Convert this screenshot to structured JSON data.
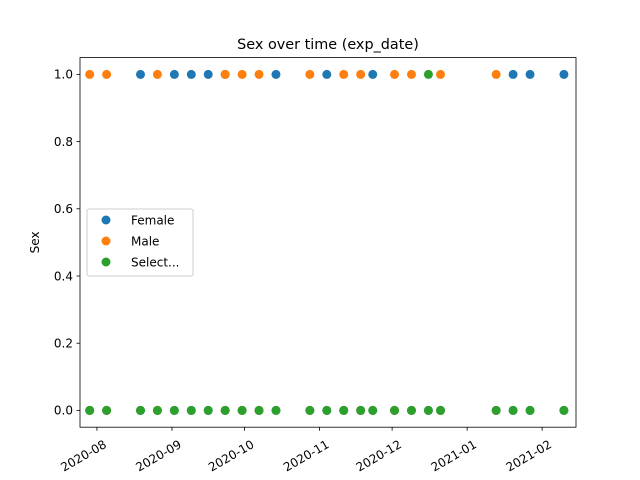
{
  "chart_data": {
    "type": "scatter",
    "title": "Sex over time (exp_date)",
    "xlabel": "",
    "ylabel": "Sex",
    "xlim": [
      "2020-07-25",
      "2021-02-15"
    ],
    "ylim": [
      -0.05,
      1.05
    ],
    "x_ticks": [
      "2020-08-01",
      "2020-09-01",
      "2020-10-01",
      "2020-11-01",
      "2020-12-01",
      "2021-01-01",
      "2021-02-01"
    ],
    "x_tick_labels": [
      "2020-08",
      "2020-09",
      "2020-10",
      "2020-11",
      "2020-12",
      "2021-01",
      "2021-02"
    ],
    "y_ticks": [
      0.0,
      0.2,
      0.4,
      0.6,
      0.8,
      1.0
    ],
    "y_tick_labels": [
      "0.0",
      "0.2",
      "0.4",
      "0.6",
      "0.8",
      "1.0"
    ],
    "grid": false,
    "legend_position": "center-left",
    "series": [
      {
        "name": "Female",
        "color": "#1f77b4",
        "points": [
          {
            "x": "2020-07-29",
            "y": 0
          },
          {
            "x": "2020-08-05",
            "y": 0
          },
          {
            "x": "2020-08-19",
            "y": 1
          },
          {
            "x": "2020-08-19",
            "y": 0
          },
          {
            "x": "2020-08-26",
            "y": 0
          },
          {
            "x": "2020-09-02",
            "y": 1
          },
          {
            "x": "2020-09-02",
            "y": 0
          },
          {
            "x": "2020-09-09",
            "y": 1
          },
          {
            "x": "2020-09-09",
            "y": 0
          },
          {
            "x": "2020-09-16",
            "y": 1
          },
          {
            "x": "2020-09-16",
            "y": 0
          },
          {
            "x": "2020-09-23",
            "y": 1
          },
          {
            "x": "2020-09-23",
            "y": 0
          },
          {
            "x": "2020-09-30",
            "y": 0
          },
          {
            "x": "2020-10-07",
            "y": 0
          },
          {
            "x": "2020-10-14",
            "y": 1
          },
          {
            "x": "2020-10-14",
            "y": 0
          },
          {
            "x": "2020-10-28",
            "y": 0
          },
          {
            "x": "2020-11-04",
            "y": 1
          },
          {
            "x": "2020-11-04",
            "y": 0
          },
          {
            "x": "2020-11-11",
            "y": 0
          },
          {
            "x": "2020-11-18",
            "y": 0
          },
          {
            "x": "2020-11-23",
            "y": 1
          },
          {
            "x": "2020-11-23",
            "y": 0
          },
          {
            "x": "2020-12-02",
            "y": 0
          },
          {
            "x": "2020-12-09",
            "y": 0
          },
          {
            "x": "2020-12-16",
            "y": 0
          },
          {
            "x": "2020-12-21",
            "y": 0
          },
          {
            "x": "2021-01-13",
            "y": 0
          },
          {
            "x": "2021-01-20",
            "y": 1
          },
          {
            "x": "2021-01-20",
            "y": 0
          },
          {
            "x": "2021-01-27",
            "y": 1
          },
          {
            "x": "2021-01-27",
            "y": 0
          },
          {
            "x": "2021-02-10",
            "y": 1
          },
          {
            "x": "2021-02-10",
            "y": 0
          }
        ]
      },
      {
        "name": "Male",
        "color": "#ff7f0e",
        "points": [
          {
            "x": "2020-07-29",
            "y": 1
          },
          {
            "x": "2020-07-29",
            "y": 0
          },
          {
            "x": "2020-08-05",
            "y": 1
          },
          {
            "x": "2020-08-05",
            "y": 0
          },
          {
            "x": "2020-08-26",
            "y": 1
          },
          {
            "x": "2020-08-26",
            "y": 0
          },
          {
            "x": "2020-09-23",
            "y": 1
          },
          {
            "x": "2020-09-23",
            "y": 0
          },
          {
            "x": "2020-09-30",
            "y": 1
          },
          {
            "x": "2020-09-30",
            "y": 0
          },
          {
            "x": "2020-10-07",
            "y": 1
          },
          {
            "x": "2020-10-07",
            "y": 0
          },
          {
            "x": "2020-10-28",
            "y": 1
          },
          {
            "x": "2020-10-28",
            "y": 0
          },
          {
            "x": "2020-11-11",
            "y": 1
          },
          {
            "x": "2020-11-11",
            "y": 0
          },
          {
            "x": "2020-11-18",
            "y": 1
          },
          {
            "x": "2020-11-18",
            "y": 0
          },
          {
            "x": "2020-12-02",
            "y": 1
          },
          {
            "x": "2020-12-02",
            "y": 0
          },
          {
            "x": "2020-12-09",
            "y": 1
          },
          {
            "x": "2020-12-09",
            "y": 0
          },
          {
            "x": "2020-12-21",
            "y": 1
          },
          {
            "x": "2020-12-21",
            "y": 0
          },
          {
            "x": "2021-01-13",
            "y": 1
          },
          {
            "x": "2021-01-13",
            "y": 0
          }
        ]
      },
      {
        "name": "Select...",
        "color": "#2ca02c",
        "points": [
          {
            "x": "2020-07-29",
            "y": 0
          },
          {
            "x": "2020-08-05",
            "y": 0
          },
          {
            "x": "2020-08-19",
            "y": 0
          },
          {
            "x": "2020-08-26",
            "y": 0
          },
          {
            "x": "2020-09-02",
            "y": 0
          },
          {
            "x": "2020-09-09",
            "y": 0
          },
          {
            "x": "2020-09-16",
            "y": 0
          },
          {
            "x": "2020-09-23",
            "y": 0
          },
          {
            "x": "2020-09-30",
            "y": 0
          },
          {
            "x": "2020-10-07",
            "y": 0
          },
          {
            "x": "2020-10-14",
            "y": 0
          },
          {
            "x": "2020-10-28",
            "y": 0
          },
          {
            "x": "2020-11-04",
            "y": 0
          },
          {
            "x": "2020-11-11",
            "y": 0
          },
          {
            "x": "2020-11-18",
            "y": 0
          },
          {
            "x": "2020-11-23",
            "y": 0
          },
          {
            "x": "2020-12-02",
            "y": 0
          },
          {
            "x": "2020-12-09",
            "y": 0
          },
          {
            "x": "2020-12-16",
            "y": 1
          },
          {
            "x": "2020-12-16",
            "y": 0
          },
          {
            "x": "2020-12-21",
            "y": 0
          },
          {
            "x": "2021-01-13",
            "y": 0
          },
          {
            "x": "2021-01-20",
            "y": 0
          },
          {
            "x": "2021-01-27",
            "y": 0
          },
          {
            "x": "2021-02-10",
            "y": 0
          }
        ]
      }
    ]
  }
}
